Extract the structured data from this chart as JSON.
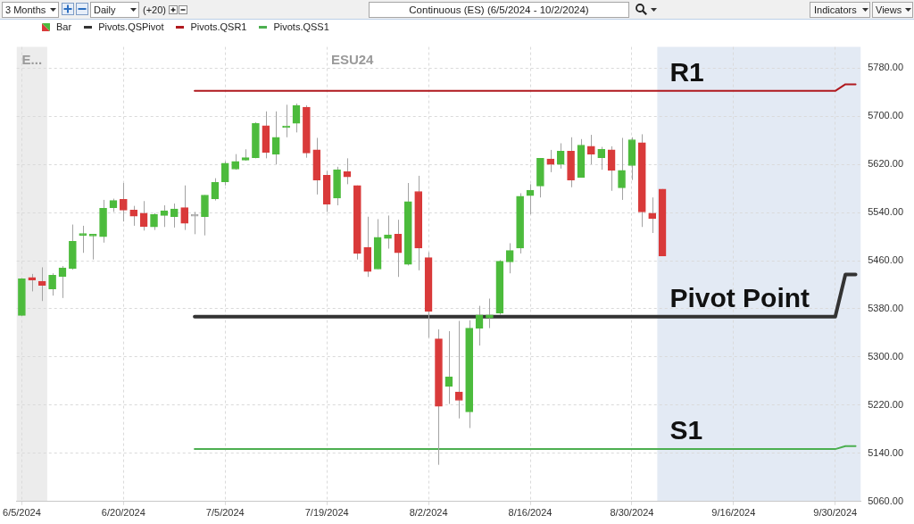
{
  "chart_data": {
    "type": "candlestick",
    "title": "Continuous (ES) (6/5/2024 - 10/2/2024)",
    "categories": [
      "6/5/2024",
      null,
      null,
      null,
      null,
      null,
      null,
      null,
      null,
      null,
      "6/20/2024",
      null,
      null,
      null,
      null,
      null,
      null,
      null,
      null,
      null,
      "7/5/2024",
      null,
      null,
      null,
      null,
      null,
      null,
      null,
      null,
      null,
      "7/19/2024",
      null,
      null,
      null,
      null,
      null,
      null,
      null,
      null,
      null,
      "8/2/2024",
      null,
      null,
      null,
      null,
      null,
      null,
      null,
      null,
      null,
      "8/16/2024",
      null,
      null,
      null,
      null,
      null,
      null,
      null,
      null,
      null,
      "8/30/2024",
      null,
      null,
      null,
      null,
      null,
      null,
      null,
      null,
      null,
      "9/16/2024",
      null,
      null,
      null,
      null,
      null,
      null,
      null,
      null,
      null,
      "9/30/2024",
      null,
      null
    ],
    "ylim": [
      5060,
      5815
    ],
    "yticks": [
      {
        "value": 5060,
        "label": "5060.00"
      },
      {
        "value": 5140,
        "label": "5140.00"
      },
      {
        "value": 5220,
        "label": "5220.00"
      },
      {
        "value": 5300,
        "label": "5300.00"
      },
      {
        "value": 5380,
        "label": "5380.00"
      },
      {
        "value": 5460,
        "label": "5460.00"
      },
      {
        "value": 5540,
        "label": "5540.00"
      },
      {
        "value": 5620,
        "label": "5620.00"
      },
      {
        "value": 5700,
        "label": "5700.00"
      },
      {
        "value": 5780,
        "label": "5780.00"
      }
    ],
    "grid": true,
    "legend": "top left",
    "series": [
      {
        "name": "Bar",
        "ohlc": [
          [
            5369,
            5431,
            5368,
            5430
          ],
          [
            5432,
            5438,
            5409,
            5428
          ],
          [
            5426,
            5449,
            5393,
            5419
          ],
          [
            5413,
            5439,
            5402,
            5436
          ],
          [
            5434,
            5451,
            5398,
            5448
          ],
          [
            5447,
            5520,
            5445,
            5492
          ],
          [
            5502,
            5518,
            5473,
            5504
          ],
          [
            5501,
            5503,
            5462,
            5503
          ],
          [
            5500,
            5561,
            5490,
            5547
          ],
          [
            5548,
            5563,
            5541,
            5560
          ],
          [
            5562,
            5589,
            5525,
            5544
          ],
          [
            5544,
            5551,
            5518,
            5534
          ],
          [
            5539,
            5559,
            5510,
            5517
          ],
          [
            5516,
            5539,
            5511,
            5537
          ],
          [
            5535,
            5552,
            5516,
            5543
          ],
          [
            5533,
            5555,
            5515,
            5546
          ],
          [
            5548,
            5585,
            5511,
            5522
          ],
          [
            5534,
            5541,
            5504,
            5534
          ],
          [
            5533,
            5569,
            5502,
            5569
          ],
          [
            5563,
            5597,
            5560,
            5590
          ],
          [
            5591,
            5625,
            5585,
            5622
          ],
          [
            5612,
            5637,
            5611,
            5625
          ],
          [
            5627,
            5645,
            5626,
            5631
          ],
          [
            5631,
            5690,
            5630,
            5688
          ],
          [
            5684,
            5708,
            5630,
            5640
          ],
          [
            5637,
            5708,
            5620,
            5665
          ],
          [
            5681,
            5719,
            5665,
            5683
          ],
          [
            5688,
            5721,
            5673,
            5718
          ],
          [
            5715,
            5718,
            5631,
            5639
          ],
          [
            5644,
            5664,
            5570,
            5594
          ],
          [
            5602,
            5609,
            5541,
            5554
          ],
          [
            5564,
            5616,
            5552,
            5611
          ],
          [
            5608,
            5630,
            5587,
            5599
          ],
          [
            5585,
            5585,
            5462,
            5472
          ],
          [
            5482,
            5533,
            5433,
            5442
          ],
          [
            5446,
            5529,
            5446,
            5499
          ],
          [
            5497,
            5535,
            5480,
            5503
          ],
          [
            5504,
            5528,
            5433,
            5473
          ],
          [
            5454,
            5589,
            5452,
            5558
          ],
          [
            5575,
            5601,
            5444,
            5481
          ],
          [
            5465,
            5474,
            5332,
            5376
          ],
          [
            5330,
            5346,
            5121,
            5218
          ],
          [
            5251,
            5343,
            5222,
            5267
          ],
          [
            5242,
            5360,
            5198,
            5228
          ],
          [
            5209,
            5361,
            5182,
            5348
          ],
          [
            5348,
            5385,
            5319,
            5370
          ],
          [
            5365,
            5397,
            5348,
            5370
          ],
          [
            5373,
            5461,
            5370,
            5459
          ],
          [
            5458,
            5489,
            5439,
            5477
          ],
          [
            5481,
            5572,
            5472,
            5567
          ],
          [
            5568,
            5587,
            5537,
            5577
          ],
          [
            5584,
            5630,
            5565,
            5630
          ],
          [
            5629,
            5644,
            5607,
            5620
          ],
          [
            5620,
            5655,
            5613,
            5642
          ],
          [
            5642,
            5665,
            5582,
            5594
          ],
          [
            5598,
            5662,
            5598,
            5652
          ],
          [
            5650,
            5669,
            5620,
            5637
          ],
          [
            5631,
            5649,
            5611,
            5645
          ],
          [
            5644,
            5650,
            5576,
            5610
          ],
          [
            5581,
            5664,
            5561,
            5610
          ],
          [
            5618,
            5665,
            5594,
            5661
          ],
          [
            5656,
            5670,
            5516,
            5541
          ],
          [
            5539,
            5565,
            5506,
            5530
          ],
          [
            5579,
            5579,
            5468,
            5468
          ],
          null,
          null,
          null,
          null,
          null,
          null,
          null,
          null,
          null,
          null,
          null,
          null,
          null,
          null,
          null,
          null,
          null,
          null,
          null
        ],
        "colors": [
          "#4cbb3c",
          "#d93a3a",
          "#d93a3a",
          "#4cbb3c",
          "#4cbb3c",
          "#4cbb3c",
          "#4cbb3c",
          "#4cbb3c",
          "#4cbb3c",
          "#4cbb3c",
          "#d93a3a",
          "#d93a3a",
          "#d93a3a",
          "#4cbb3c",
          "#4cbb3c",
          "#4cbb3c",
          "#d93a3a",
          "#a6a6a6",
          "#4cbb3c",
          "#4cbb3c",
          "#4cbb3c",
          "#4cbb3c",
          "#4cbb3c",
          "#4cbb3c",
          "#d93a3a",
          "#4cbb3c",
          "#4cbb3c",
          "#4cbb3c",
          "#d93a3a",
          "#d93a3a",
          "#d93a3a",
          "#4cbb3c",
          "#d93a3a",
          "#d93a3a",
          "#d93a3a",
          "#4cbb3c",
          "#4cbb3c",
          "#d93a3a",
          "#4cbb3c",
          "#d93a3a",
          "#d93a3a",
          "#d93a3a",
          "#4cbb3c",
          "#d93a3a",
          "#4cbb3c",
          "#4cbb3c",
          "#4cbb3c",
          "#4cbb3c",
          "#4cbb3c",
          "#4cbb3c",
          "#4cbb3c",
          "#4cbb3c",
          "#d93a3a",
          "#4cbb3c",
          "#d93a3a",
          "#4cbb3c",
          "#d93a3a",
          "#4cbb3c",
          "#d93a3a",
          "#4cbb3c",
          "#4cbb3c",
          "#d93a3a",
          "#d93a3a",
          "#d93a3a",
          null,
          null,
          null,
          null,
          null,
          null,
          null,
          null,
          null,
          null,
          null,
          null,
          null,
          null,
          null,
          null,
          null,
          null,
          null
        ]
      },
      {
        "name": "Pivots.QSPivot",
        "type": "line",
        "color": "#333333",
        "values": [
          null,
          null,
          null,
          null,
          null,
          null,
          null,
          null,
          null,
          null,
          null,
          null,
          null,
          null,
          null,
          null,
          null,
          5367,
          5367,
          5367,
          5367,
          5367,
          5367,
          5367,
          5367,
          5367,
          5367,
          5367,
          5367,
          5367,
          5367,
          5367,
          5367,
          5367,
          5367,
          5367,
          5367,
          5367,
          5367,
          5367,
          5367,
          5367,
          5367,
          5367,
          5367,
          5367,
          5367,
          5367,
          5367,
          5367,
          5367,
          5367,
          5367,
          5367,
          5367,
          5367,
          5367,
          5367,
          5367,
          5367,
          5367,
          5367,
          5367,
          5367,
          5367,
          5367,
          5367,
          5367,
          5367,
          5367,
          5367,
          5367,
          5367,
          5367,
          5367,
          5367,
          5367,
          5367,
          5367,
          5367,
          5367,
          5437,
          5437
        ]
      },
      {
        "name": "Pivots.QSR1",
        "type": "line",
        "color": "#b0191e",
        "values": [
          null,
          null,
          null,
          null,
          null,
          null,
          null,
          null,
          null,
          null,
          null,
          null,
          null,
          null,
          null,
          null,
          null,
          5742,
          5742,
          5742,
          5742,
          5742,
          5742,
          5742,
          5742,
          5742,
          5742,
          5742,
          5742,
          5742,
          5742,
          5742,
          5742,
          5742,
          5742,
          5742,
          5742,
          5742,
          5742,
          5742,
          5742,
          5742,
          5742,
          5742,
          5742,
          5742,
          5742,
          5742,
          5742,
          5742,
          5742,
          5742,
          5742,
          5742,
          5742,
          5742,
          5742,
          5742,
          5742,
          5742,
          5742,
          5742,
          5742,
          5742,
          5742,
          5742,
          5742,
          5742,
          5742,
          5742,
          5742,
          5742,
          5742,
          5742,
          5742,
          5742,
          5742,
          5742,
          5742,
          5742,
          5742,
          5753,
          5753
        ]
      },
      {
        "name": "Pivots.QSS1",
        "type": "line",
        "color": "#4caf50",
        "values": [
          null,
          null,
          null,
          null,
          null,
          null,
          null,
          null,
          null,
          null,
          null,
          null,
          null,
          null,
          null,
          null,
          null,
          5147,
          5147,
          5147,
          5147,
          5147,
          5147,
          5147,
          5147,
          5147,
          5147,
          5147,
          5147,
          5147,
          5147,
          5147,
          5147,
          5147,
          5147,
          5147,
          5147,
          5147,
          5147,
          5147,
          5147,
          5147,
          5147,
          5147,
          5147,
          5147,
          5147,
          5147,
          5147,
          5147,
          5147,
          5147,
          5147,
          5147,
          5147,
          5147,
          5147,
          5147,
          5147,
          5147,
          5147,
          5147,
          5147,
          5147,
          5147,
          5147,
          5147,
          5147,
          5147,
          5147,
          5147,
          5147,
          5147,
          5147,
          5147,
          5147,
          5147,
          5147,
          5147,
          5147,
          5147,
          5152,
          5152
        ]
      }
    ],
    "annotations": [
      "3 Months",
      "Daily",
      "(+20)",
      "Indicators",
      "Views",
      "E...",
      "ESU24",
      {
        "text": "R1",
        "y": 5742
      },
      {
        "text": "Pivot Point",
        "y": 5367
      },
      {
        "text": "S1",
        "y": 5147
      }
    ]
  }
}
